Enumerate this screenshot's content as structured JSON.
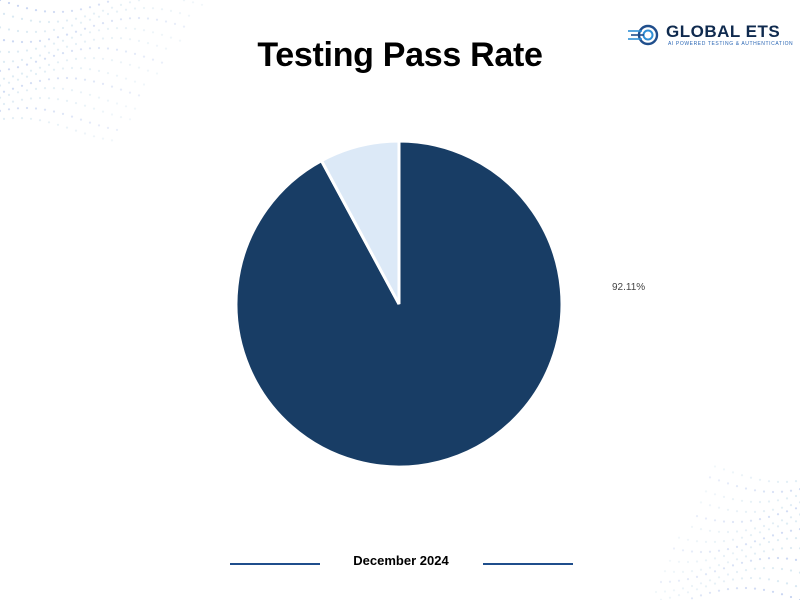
{
  "brand": {
    "name": "GLOBAL ETS",
    "tagline": "AI POWERED TESTING & AUTHENTICATION",
    "logo_icon": "global-ets-logo-icon"
  },
  "title": "Testing Pass Rate",
  "footer": {
    "date": "December 2024"
  },
  "colors": {
    "primary": "#183d65",
    "secondary": "#dce9f7",
    "accent": "#1f4e8c"
  },
  "chart_data": {
    "type": "pie",
    "title": "Testing Pass Rate",
    "slices": [
      {
        "value": 92.11,
        "color": "#183d65",
        "label": "92.11%"
      },
      {
        "value": 7.89,
        "color": "#dce9f7",
        "label": ""
      }
    ],
    "legend": "none"
  }
}
